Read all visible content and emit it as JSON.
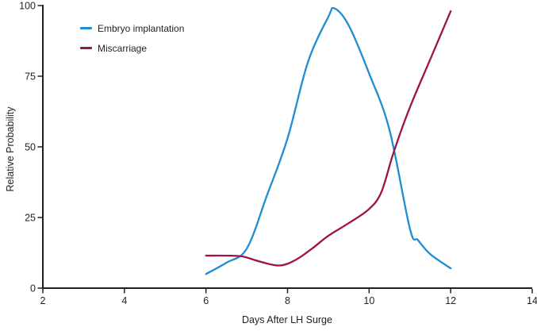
{
  "chart_data": {
    "type": "line",
    "title": "",
    "xlabel": "Days After LH Surge",
    "ylabel": "Relative Probability",
    "xlim": [
      2,
      14
    ],
    "ylim": [
      0,
      100
    ],
    "x_ticks": [
      "2",
      "4",
      "6",
      "8",
      "10",
      "12",
      "14"
    ],
    "x_tick_values": [
      2,
      4,
      6,
      8,
      10,
      12,
      14
    ],
    "y_ticks": [
      "0",
      "25",
      "50",
      "75",
      "100"
    ],
    "y_tick_values": [
      0,
      25,
      50,
      75,
      100
    ],
    "grid": false,
    "legend_position": "top-left-inside",
    "series": [
      {
        "name": "Embryo implantation",
        "color": "#1f8cd3",
        "x": [
          6,
          6.5,
          7,
          7.5,
          8,
          8.5,
          9,
          9.15,
          9.5,
          10,
          10.5,
          11,
          11.2,
          11.5,
          12
        ],
        "y": [
          5,
          9,
          14,
          33,
          53,
          80,
          96,
          99,
          93,
          76,
          56,
          21,
          17,
          12,
          7
        ]
      },
      {
        "name": "Miscarriage",
        "color": "#a0124a",
        "x": [
          6,
          6.5,
          6.9,
          7.3,
          7.8,
          8.2,
          8.6,
          9,
          9.5,
          10,
          10.3,
          10.6,
          11,
          11.5,
          12
        ],
        "y": [
          11.5,
          11.5,
          11.2,
          9.5,
          8,
          10,
          14,
          18.5,
          23,
          28,
          34,
          48,
          64,
          81,
          98
        ]
      }
    ]
  },
  "colors": {
    "axis": "#231f20",
    "text": "#231f20",
    "background": "#ffffff"
  }
}
